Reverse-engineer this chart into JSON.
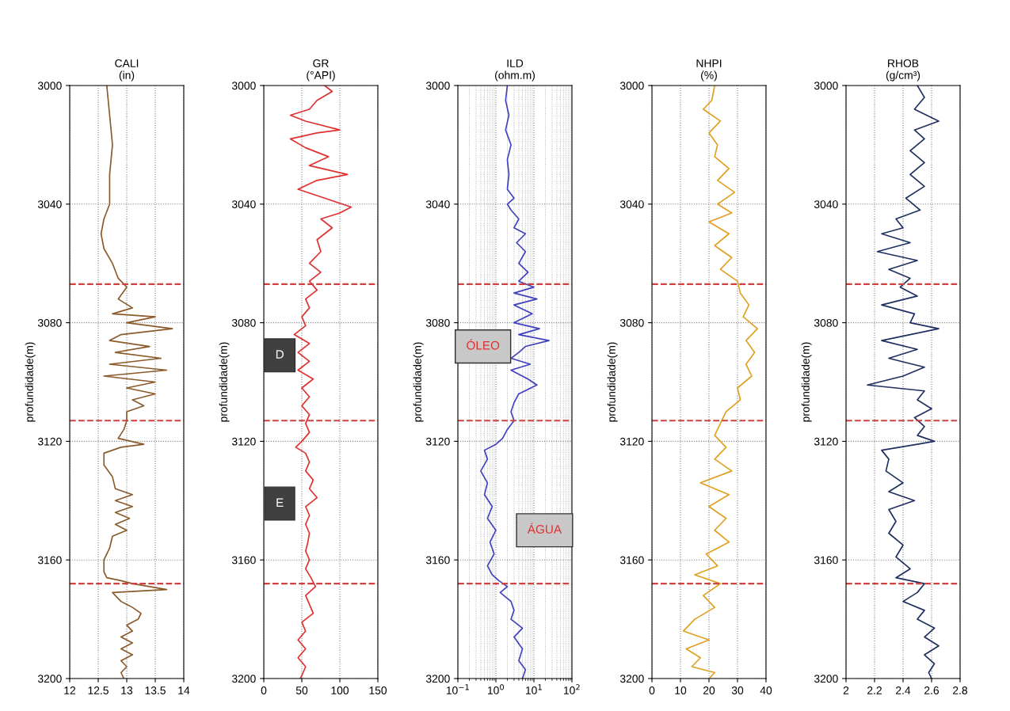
{
  "chart_data": [
    {
      "type": "line",
      "title": "CALI\n(in)",
      "ylabel": "profundidade(m)",
      "xlim": [
        12,
        14
      ],
      "xticks": [
        12,
        12.5,
        13,
        13.5,
        14
      ],
      "ylim": [
        3200,
        3000
      ],
      "yticks": [
        3000,
        3040,
        3080,
        3120,
        3160,
        3200
      ],
      "grid": true,
      "series": [
        {
          "color": "#8b5a2b",
          "x": [
            12.65,
            12.7,
            12.75,
            12.7,
            12.7,
            12.6,
            12.55,
            12.6,
            12.75,
            12.85,
            13.0,
            12.85,
            13.1,
            12.75,
            13.5,
            13.0,
            13.8,
            12.9,
            12.7,
            13.4,
            12.8,
            13.6,
            12.7,
            13.7,
            12.6,
            13.5,
            13.0,
            13.5,
            13.1,
            13.3,
            13.0,
            13.0,
            12.95,
            12.85,
            13.3,
            12.9,
            12.6,
            12.6,
            12.75,
            12.8,
            13.1,
            12.8,
            13.1,
            12.8,
            13.05,
            12.8,
            13.0,
            12.75,
            12.7,
            12.6,
            12.6,
            12.65,
            12.9,
            13.1,
            13.7,
            12.75,
            12.9,
            13.1,
            13.25,
            13.2,
            13.0,
            13.1,
            12.9,
            13.1,
            12.9,
            13.1,
            12.9,
            13.0,
            12.9,
            12.95
          ],
          "values": [
            3000,
            3010,
            3020,
            3030,
            3040,
            3045,
            3050,
            3055,
            3060,
            3065,
            3068,
            3072,
            3075,
            3077,
            3078,
            3080,
            3082,
            3084,
            3086,
            3088,
            3090,
            3092,
            3094,
            3096,
            3098,
            3100,
            3102,
            3104,
            3106,
            3108,
            3110,
            3113,
            3116,
            3119,
            3121,
            3122,
            3124,
            3128,
            3132,
            3136,
            3138,
            3140,
            3142,
            3144,
            3146,
            3148,
            3150,
            3152,
            3156,
            3160,
            3164,
            3166,
            3167,
            3168,
            3170,
            3171,
            3174,
            3176,
            3178,
            3180,
            3182,
            3184,
            3186,
            3188,
            3190,
            3192,
            3194,
            3196,
            3198,
            3200
          ]
        }
      ],
      "ref_lines": [
        {
          "axis": "y",
          "value": 3067,
          "color": "#d04040",
          "line_style": "dashed"
        },
        {
          "axis": "y",
          "value": 3113,
          "color": "#d04040",
          "line_style": "dashed"
        },
        {
          "axis": "y",
          "value": 3168,
          "color": "#d04040",
          "line_style": "dashed"
        }
      ]
    },
    {
      "type": "line",
      "title": "GR\n(°API)",
      "ylabel": "profundidade(m)",
      "xlim": [
        0,
        150
      ],
      "xticks": [
        0,
        50,
        100,
        150
      ],
      "ylim": [
        3200,
        3000
      ],
      "yticks": [
        3000,
        3040,
        3080,
        3120,
        3160,
        3200
      ],
      "grid": true,
      "series": [
        {
          "color": "#e03030",
          "x": [
            80,
            90,
            70,
            60,
            35,
            55,
            100,
            70,
            35,
            55,
            85,
            60,
            110,
            70,
            45,
            80,
            115,
            100,
            75,
            90,
            70,
            75,
            60,
            75,
            60,
            70,
            55,
            60,
            50,
            55,
            40,
            60,
            45,
            60,
            45,
            65,
            50,
            60,
            50,
            60,
            55,
            60,
            50,
            42,
            55,
            60,
            55,
            65,
            60,
            70,
            55,
            60,
            55,
            60,
            58,
            55,
            60,
            55,
            62,
            68,
            55,
            60,
            65,
            50,
            55,
            45,
            55,
            45,
            55,
            50,
            48
          ],
          "values": [
            3000,
            3002,
            3005,
            3008,
            3010,
            3012,
            3015,
            3016,
            3018,
            3021,
            3024,
            3027,
            3030,
            3032,
            3035,
            3038,
            3041,
            3043,
            3045,
            3048,
            3052,
            3056,
            3060,
            3063,
            3066,
            3069,
            3072,
            3075,
            3078,
            3081,
            3084,
            3087,
            3090,
            3093,
            3096,
            3099,
            3102,
            3105,
            3108,
            3111,
            3114,
            3117,
            3120,
            3122,
            3124,
            3127,
            3130,
            3133,
            3136,
            3139,
            3142,
            3145,
            3148,
            3151,
            3154,
            3157,
            3160,
            3163,
            3166,
            3169,
            3172,
            3175,
            3178,
            3181,
            3184,
            3187,
            3190,
            3193,
            3196,
            3199,
            3200
          ]
        }
      ],
      "annotations": [
        "D",
        "E"
      ],
      "ref_lines": [
        {
          "axis": "y",
          "value": 3067,
          "color": "#d04040",
          "line_style": "dashed"
        },
        {
          "axis": "y",
          "value": 3113,
          "color": "#d04040",
          "line_style": "dashed"
        },
        {
          "axis": "y",
          "value": 3168,
          "color": "#d04040",
          "line_style": "dashed"
        }
      ]
    },
    {
      "type": "line",
      "title": "ILD\n(ohm.m)",
      "ylabel": "profundidade(m)",
      "log": "x",
      "xlim": [
        0.1,
        100
      ],
      "xticks": [
        {
          "value": 0.1,
          "label": "10$^{−1}$"
        },
        {
          "value": 1,
          "label": "10$^{0}$"
        },
        {
          "value": 10,
          "label": "10$^{1}$"
        },
        {
          "value": 100,
          "label": "10$^{2}$"
        }
      ],
      "ylim": [
        3200,
        3000
      ],
      "yticks": [
        3000,
        3040,
        3080,
        3120,
        3160,
        3200
      ],
      "grid": true,
      "series": [
        {
          "color": "#4040c0",
          "x": [
            2,
            1.8,
            2.2,
            1.8,
            2.5,
            2,
            2.2,
            2,
            3,
            2,
            2.5,
            4,
            3,
            6,
            3.5,
            6,
            4,
            7,
            4,
            10,
            3,
            12,
            3,
            9,
            3,
            14,
            4,
            25,
            6,
            4,
            2.5,
            8,
            2.5,
            7,
            12,
            4,
            3,
            2.5,
            3,
            2,
            1.5,
            1,
            0.5,
            0.6,
            0.4,
            0.6,
            0.5,
            0.8,
            0.6,
            1.0,
            0.7,
            0.9,
            0.6,
            0.8,
            1.2,
            2,
            1.3,
            2.5,
            3,
            2.5,
            5,
            3,
            5,
            4,
            6,
            5
          ],
          "values": [
            3000,
            3005,
            3010,
            3015,
            3020,
            3025,
            3030,
            3035,
            3038,
            3040,
            3042,
            3045,
            3048,
            3050,
            3053,
            3056,
            3060,
            3063,
            3066,
            3068,
            3070,
            3072,
            3074,
            3077,
            3080,
            3082,
            3084,
            3086,
            3088,
            3090,
            3092,
            3094,
            3096,
            3099,
            3101,
            3104,
            3107,
            3110,
            3113,
            3116,
            3119,
            3121,
            3123,
            3126,
            3130,
            3134,
            3138,
            3142,
            3146,
            3150,
            3154,
            3158,
            3162,
            3165,
            3167,
            3169,
            3171,
            3174,
            3177,
            3180,
            3183,
            3186,
            3190,
            3194,
            3197,
            3200
          ]
        }
      ],
      "annotations": [
        "ÓLEO",
        "ÁGUA"
      ],
      "ref_lines": [
        {
          "axis": "y",
          "value": 3067,
          "color": "#d04040",
          "line_style": "dashed"
        },
        {
          "axis": "y",
          "value": 3113,
          "color": "#d04040",
          "line_style": "dashed"
        },
        {
          "axis": "y",
          "value": 3168,
          "color": "#d04040",
          "line_style": "dashed"
        }
      ]
    },
    {
      "type": "line",
      "title": "NHPI\n(%)",
      "ylabel": "profundidade(m)",
      "xlim": [
        0,
        40
      ],
      "xticks": [
        0,
        10,
        20,
        30,
        40
      ],
      "ylim": [
        3200,
        3000
      ],
      "yticks": [
        3000,
        3040,
        3080,
        3120,
        3160,
        3200
      ],
      "grid": true,
      "series": [
        {
          "color": "#e0a020",
          "x": [
            22,
            21,
            18,
            24,
            20,
            23,
            22,
            27,
            23,
            29,
            23,
            28,
            20,
            27,
            22,
            28,
            24,
            30,
            31,
            34,
            32,
            37,
            33,
            36,
            33,
            35,
            30,
            31,
            26,
            24,
            22,
            26,
            22,
            28,
            17,
            27,
            20,
            26,
            22,
            27,
            19,
            23,
            15,
            24,
            18,
            22,
            15,
            11,
            20,
            12,
            17,
            14,
            22,
            20
          ],
          "values": [
            3000,
            3005,
            3008,
            3012,
            3016,
            3020,
            3024,
            3028,
            3032,
            3036,
            3040,
            3043,
            3046,
            3050,
            3054,
            3058,
            3062,
            3066,
            3070,
            3074,
            3078,
            3082,
            3086,
            3090,
            3094,
            3098,
            3102,
            3106,
            3110,
            3114,
            3118,
            3122,
            3126,
            3130,
            3134,
            3138,
            3142,
            3146,
            3150,
            3154,
            3158,
            3162,
            3165,
            3168,
            3172,
            3176,
            3180,
            3184,
            3187,
            3190,
            3193,
            3196,
            3198,
            3200
          ]
        }
      ],
      "ref_lines": [
        {
          "axis": "y",
          "value": 3067,
          "color": "#d04040",
          "line_style": "dashed"
        },
        {
          "axis": "y",
          "value": 3113,
          "color": "#d04040",
          "line_style": "dashed"
        },
        {
          "axis": "y",
          "value": 3168,
          "color": "#d04040",
          "line_style": "dashed"
        }
      ]
    },
    {
      "type": "line",
      "title": "RHOB\n(g/cm³)",
      "ylabel": "profundidade(m)",
      "xlim": [
        2,
        2.8
      ],
      "xticks": [
        2,
        2.2,
        2.4,
        2.6,
        2.8
      ],
      "ylim": [
        3200,
        3000
      ],
      "yticks": [
        3000,
        3040,
        3080,
        3120,
        3160,
        3200
      ],
      "grid": true,
      "series": [
        {
          "color": "#1f3060",
          "x": [
            2.5,
            2.55,
            2.48,
            2.65,
            2.48,
            2.55,
            2.45,
            2.55,
            2.45,
            2.55,
            2.42,
            2.52,
            2.35,
            2.4,
            2.25,
            2.45,
            2.22,
            2.5,
            2.3,
            2.45,
            2.38,
            2.5,
            2.25,
            2.48,
            2.45,
            2.65,
            2.45,
            2.25,
            2.5,
            2.3,
            2.55,
            2.4,
            2.15,
            2.55,
            2.5,
            2.6,
            2.48,
            2.55,
            2.5,
            2.62,
            2.5,
            2.25,
            2.3,
            2.28,
            2.4,
            2.3,
            2.48,
            2.3,
            2.35,
            2.3,
            2.4,
            2.35,
            2.45,
            2.35,
            2.55,
            2.5,
            2.4,
            2.55,
            2.5,
            2.62,
            2.55,
            2.65,
            2.55,
            2.62,
            2.58,
            2.6
          ],
          "values": [
            3000,
            3004,
            3008,
            3012,
            3015,
            3018,
            3022,
            3026,
            3030,
            3034,
            3038,
            3042,
            3045,
            3048,
            3050,
            3053,
            3056,
            3059,
            3062,
            3065,
            3068,
            3071,
            3074,
            3077,
            3080,
            3082,
            3084,
            3086,
            3089,
            3092,
            3095,
            3098,
            3101,
            3103,
            3106,
            3109,
            3112,
            3115,
            3118,
            3120,
            3121,
            3123,
            3126,
            3130,
            3134,
            3137,
            3140,
            3143,
            3147,
            3151,
            3155,
            3159,
            3163,
            3166,
            3168,
            3171,
            3174,
            3177,
            3180,
            3183,
            3186,
            3189,
            3192,
            3195,
            3198,
            3200
          ]
        }
      ],
      "ref_lines": [
        {
          "axis": "y",
          "value": 3067,
          "color": "#d04040",
          "line_style": "dashed"
        },
        {
          "axis": "y",
          "value": 3113,
          "color": "#d04040",
          "line_style": "dashed"
        },
        {
          "axis": "y",
          "value": 3168,
          "color": "#d04040",
          "line_style": "dashed"
        }
      ]
    }
  ]
}
